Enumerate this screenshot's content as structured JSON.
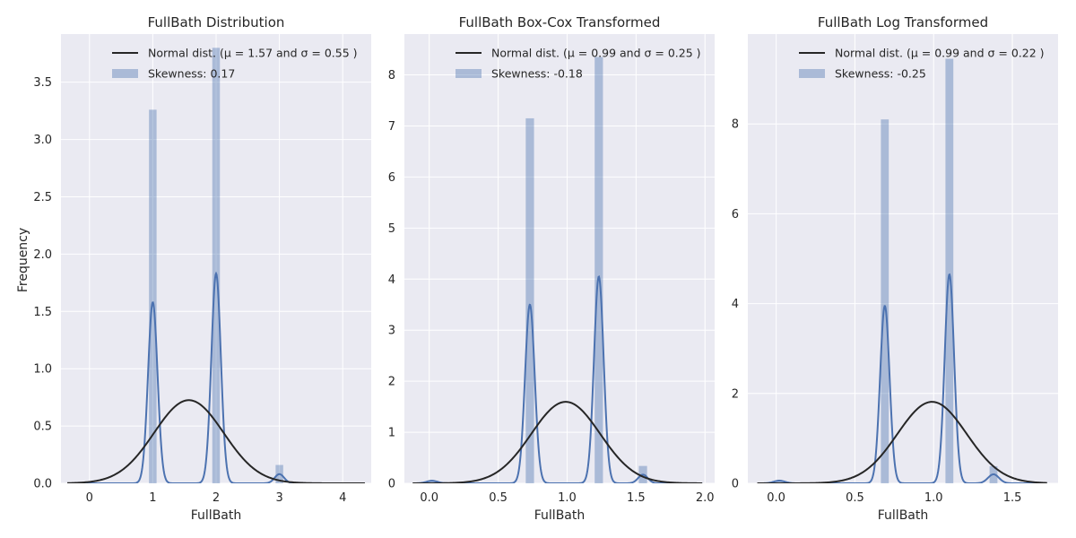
{
  "figure": {
    "ylabel": "Frequency",
    "xlabel": "FullBath"
  },
  "colors": {
    "panel_bg": "#eaeaf2",
    "grid": "#ffffff",
    "hist": "#4c72b0",
    "kde": "#4c72b0",
    "normal": "#262626",
    "text": "#262626"
  },
  "chart_data": [
    {
      "type": "histogram",
      "title": "FullBath Distribution",
      "xlabel": "FullBath",
      "ylabel": "Frequency",
      "xlim": [
        -0.45,
        4.45
      ],
      "ylim": [
        0,
        3.92
      ],
      "xticks": [
        0,
        1,
        2,
        3,
        4
      ],
      "xtick_labels": [
        "0",
        "1",
        "2",
        "3",
        "4"
      ],
      "yticks": [
        0,
        0.5,
        1,
        1.5,
        2,
        2.5,
        3,
        3.5
      ],
      "ytick_labels": [
        "0.0",
        "0.5",
        "1.0",
        "1.5",
        "2.0",
        "2.5",
        "3.0",
        "3.5"
      ],
      "grid": true,
      "legend_position": "top-right",
      "bars": [
        {
          "x": 1.0,
          "height": 3.26
        },
        {
          "x": 2.0,
          "height": 3.8
        },
        {
          "x": 3.0,
          "height": 0.16
        }
      ],
      "bar_width": 0.12,
      "kde": {
        "peaks": [
          {
            "center": 1.0,
            "height": 1.58,
            "sd": 0.075
          },
          {
            "center": 2.0,
            "height": 1.83,
            "sd": 0.075
          },
          {
            "center": 3.0,
            "height": 0.08,
            "sd": 0.075
          }
        ],
        "x_range": [
          -0.3,
          4.3
        ]
      },
      "normal_fit": {
        "mu": 1.57,
        "sigma": 0.55,
        "x_range": [
          -0.35,
          4.35
        ]
      },
      "legend": [
        {
          "kind": "line",
          "label": "Normal dist. ($\\mu=$ 1.57 and $\\sigma=$ 0.55 )"
        },
        {
          "kind": "patch",
          "label": "Skewness: 0.17"
        }
      ]
    },
    {
      "type": "histogram",
      "title": "FullBath Box-Cox Transformed",
      "xlabel": "FullBath",
      "ylabel": "",
      "xlim": [
        -0.18,
        2.07
      ],
      "ylim": [
        0,
        8.8
      ],
      "xticks": [
        0.0,
        0.5,
        1.0,
        1.5,
        2.0
      ],
      "xtick_labels": [
        "0.0",
        "0.5",
        "1.0",
        "1.5",
        "2.0"
      ],
      "yticks": [
        0,
        1,
        2,
        3,
        4,
        5,
        6,
        7,
        8
      ],
      "ytick_labels": [
        "0",
        "1",
        "2",
        "3",
        "4",
        "5",
        "6",
        "7",
        "8"
      ],
      "grid": true,
      "legend_position": "top-right",
      "bars": [
        {
          "x": 0.02,
          "height": 0.04
        },
        {
          "x": 0.73,
          "height": 7.15
        },
        {
          "x": 1.23,
          "height": 8.35
        },
        {
          "x": 1.55,
          "height": 0.34
        }
      ],
      "bar_width": 0.06,
      "kde": {
        "peaks": [
          {
            "center": 0.02,
            "height": 0.05,
            "sd": 0.04
          },
          {
            "center": 0.73,
            "height": 3.5,
            "sd": 0.035
          },
          {
            "center": 1.23,
            "height": 4.05,
            "sd": 0.035
          },
          {
            "center": 1.55,
            "height": 0.17,
            "sd": 0.035
          }
        ],
        "x_range": [
          -0.1,
          1.98
        ]
      },
      "normal_fit": {
        "mu": 0.99,
        "sigma": 0.25,
        "x_range": [
          -0.12,
          1.98
        ]
      },
      "legend": [
        {
          "kind": "line",
          "label": "Normal dist. ($\\mu=$ 0.99 and $\\sigma=$ 0.25 )"
        },
        {
          "kind": "patch",
          "label": "Skewness: -0.18"
        }
      ]
    },
    {
      "type": "histogram",
      "title": "FullBath Log Transformed",
      "xlabel": "FullBath",
      "ylabel": "",
      "xlim": [
        -0.18,
        1.79
      ],
      "ylim": [
        0,
        10.0
      ],
      "xticks": [
        0.0,
        0.5,
        1.0,
        1.5
      ],
      "xtick_labels": [
        "0.0",
        "0.5",
        "1.0",
        "1.5"
      ],
      "yticks": [
        0,
        2,
        4,
        6,
        8
      ],
      "ytick_labels": [
        "0",
        "2",
        "4",
        "6",
        "8"
      ],
      "grid": true,
      "legend_position": "top-right",
      "bars": [
        {
          "x": 0.02,
          "height": 0.05
        },
        {
          "x": 0.69,
          "height": 8.1
        },
        {
          "x": 1.1,
          "height": 9.45
        },
        {
          "x": 1.38,
          "height": 0.38
        }
      ],
      "bar_width": 0.05,
      "kde": {
        "peaks": [
          {
            "center": 0.02,
            "height": 0.06,
            "sd": 0.035
          },
          {
            "center": 0.69,
            "height": 3.95,
            "sd": 0.03
          },
          {
            "center": 1.1,
            "height": 4.65,
            "sd": 0.03
          },
          {
            "center": 1.38,
            "height": 0.2,
            "sd": 0.035
          }
        ],
        "x_range": [
          -0.1,
          1.72
        ]
      },
      "normal_fit": {
        "mu": 0.99,
        "sigma": 0.22,
        "x_range": [
          -0.12,
          1.72
        ]
      },
      "legend": [
        {
          "kind": "line",
          "label": "Normal dist. ($\\mu=$ 0.99 and $\\sigma=$ 0.22 )"
        },
        {
          "kind": "patch",
          "label": "Skewness: -0.25"
        }
      ]
    }
  ]
}
